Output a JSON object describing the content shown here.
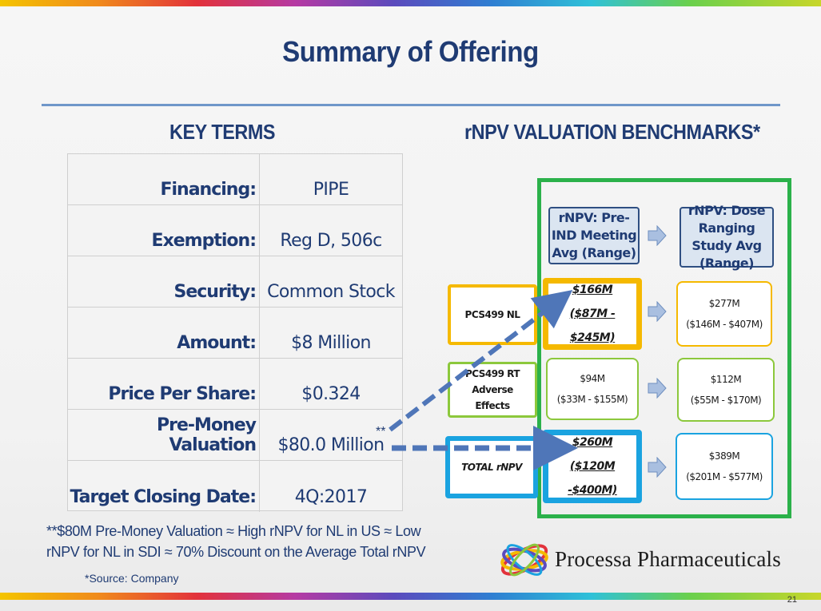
{
  "slide": {
    "title": "Summary of Offering",
    "page_number": "21"
  },
  "key_terms": {
    "heading": "KEY TERMS",
    "rows": [
      {
        "label": "Financing:",
        "value": "PIPE"
      },
      {
        "label": "Exemption:",
        "value": "Reg D, 506c"
      },
      {
        "label": "Security:",
        "value": "Common Stock"
      },
      {
        "label": "Amount:",
        "value": "$8 Million"
      },
      {
        "label": "Price Per Share:",
        "value": "$0.324"
      },
      {
        "label": "Pre-Money Valuation",
        "value": "$80.0 Million"
      },
      {
        "label": "Target Closing Date:",
        "value": "4Q:2017"
      }
    ],
    "marker": "**",
    "footnote": "**$80M Pre-Money Valuation ≈ High rNPV for NL in US ≈ Low rNPV for NL in SDI ≈ 70% Discount on the Average Total rNPV",
    "source": "*Source: Company"
  },
  "rnpv": {
    "heading": "rNPV VALUATION BENCHMARKS*",
    "col_headers": {
      "pre_ind": "rNPV: Pre-IND Meeting Avg (Range)",
      "dose_ranging": "rNPV: Dose Ranging Study Avg (Range)"
    },
    "rows": [
      {
        "label": "PCS499 NL",
        "pre_ind_avg": "$166M",
        "pre_ind_range": "($87M - $245M)",
        "dose_avg": "$277M",
        "dose_range": "($146M - $407M)"
      },
      {
        "label": "PCS499 RT Adverse Effects",
        "pre_ind_avg": "$94M",
        "pre_ind_range": "($33M - $155M)",
        "dose_avg": "$112M",
        "dose_range": "($55M - $170M)"
      },
      {
        "label": "TOTAL rNPV",
        "pre_ind_avg": "$260M",
        "pre_ind_range": "($120M -$400M)",
        "dose_avg": "$389M",
        "dose_range": "($201M - $577M)"
      }
    ]
  },
  "company": {
    "name": "Processa Pharmaceuticals"
  },
  "colors": {
    "navy": "#1f3b73",
    "frame_green": "#2bb14a",
    "nl_orange": "#f5b900",
    "rt_green": "#8cc83c",
    "total_blue": "#1aa3e0",
    "arrow_blue": "#4f76b8"
  }
}
